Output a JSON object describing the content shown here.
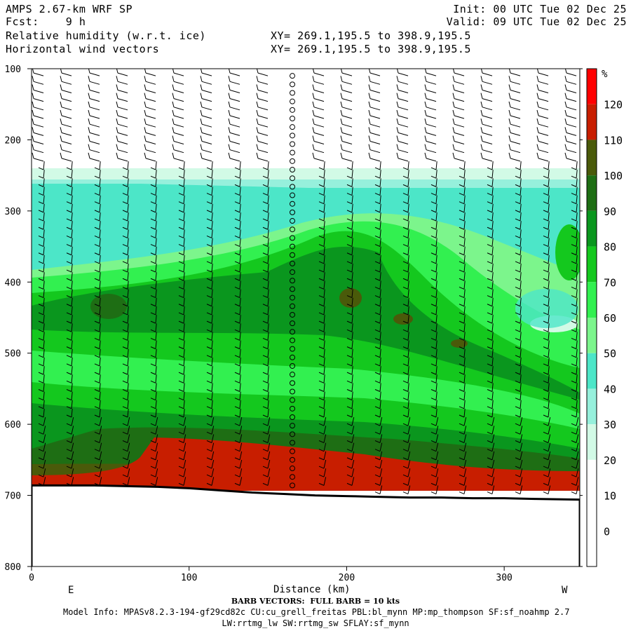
{
  "header": {
    "model": "AMPS 2.67-km WRF SP",
    "fcst": "Fcst:    9 h",
    "init": "Init: 00 UTC Tue 02 Dec 25",
    "valid": "Valid: 09 UTC Tue 02 Dec 25",
    "field1": "Relative humidity (w.r.t. ice)",
    "field2": "Horizontal wind vectors",
    "xy1": "XY= 269.1,195.5 to 398.9,195.5",
    "xy2": "XY= 269.1,195.5 to 398.9,195.5"
  },
  "chart_data": {
    "type": "heatmap",
    "title": "Relative humidity (w.r.t. ice)",
    "xlabel": "Distance (km)",
    "ylabel": "",
    "xlim": [
      0,
      348
    ],
    "ylim": [
      800,
      100
    ],
    "x_ticks": [
      "0",
      "100",
      "200",
      "300"
    ],
    "y_ticks": [
      "100",
      "200",
      "300",
      "400",
      "500",
      "600",
      "700",
      "800"
    ],
    "x_end_labels": {
      "left": "E",
      "right": "W"
    },
    "colorbar": {
      "unit": "%",
      "levels": [
        0,
        10,
        20,
        30,
        40,
        50,
        60,
        70,
        80,
        90,
        100,
        110,
        120
      ],
      "colors": [
        "#ffffff",
        "#ffffff",
        "#ffffff",
        "#d2fae6",
        "#96f0dc",
        "#4ce6c8",
        "#7cf58c",
        "#32f050",
        "#14c81e",
        "#0a961e",
        "#1e6e14",
        "#4a5a0a",
        "#c81e00",
        "#ff0000"
      ]
    },
    "terrain_pressure": [
      [
        0,
        686
      ],
      [
        20,
        686
      ],
      [
        40,
        686
      ],
      [
        60,
        687
      ],
      [
        80,
        688
      ],
      [
        100,
        690
      ],
      [
        120,
        693
      ],
      [
        140,
        696
      ],
      [
        160,
        698
      ],
      [
        180,
        700
      ],
      [
        200,
        701
      ],
      [
        220,
        702
      ],
      [
        240,
        703
      ],
      [
        260,
        703
      ],
      [
        280,
        704
      ],
      [
        300,
        704
      ],
      [
        320,
        705
      ],
      [
        348,
        706
      ]
    ],
    "barb_note": "BARB VECTORS:  FULL BARB = 10 kts"
  },
  "footer": {
    "barb": "BARB VECTORS:  FULL BARB = 10 kts",
    "model_info": "Model Info: MPASv8.2.3-194-gf29cd82c CU:cu_grell_freitas PBL:bl_mynn MP:mp_thompson SF:sf_noahmp 2.7",
    "model_info2": "LW:rrtmg_lw SW:rrtmg_sw SFLAY:sf_mynn"
  }
}
